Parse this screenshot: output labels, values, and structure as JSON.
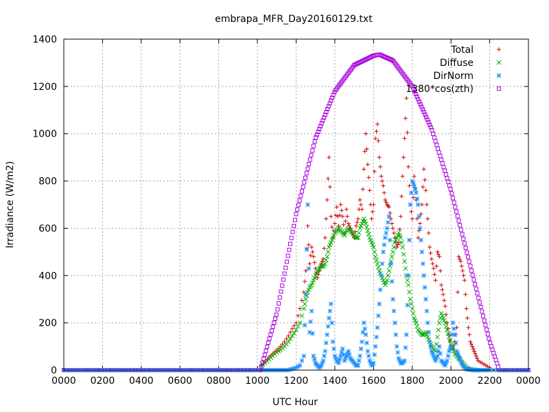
{
  "chart_data": {
    "type": "scatter",
    "title": "embrapa_MFR_Day20160129.txt",
    "xlabel": "UTC Hour",
    "ylabel": "Irradiance (W/m2)",
    "xlim": [
      0,
      24
    ],
    "ylim": [
      0,
      1400
    ],
    "x_ticks": [
      0,
      2,
      4,
      6,
      8,
      10,
      12,
      14,
      16,
      18,
      20,
      22,
      24
    ],
    "x_tick_labels": [
      "0000",
      "0200",
      "0400",
      "0600",
      "0800",
      "1000",
      "1200",
      "1400",
      "1600",
      "1800",
      "2000",
      "2200",
      "0000"
    ],
    "y_ticks": [
      0,
      200,
      400,
      600,
      800,
      1000,
      1200,
      1400
    ],
    "y_tick_labels": [
      "0",
      "200",
      "400",
      "600",
      "800",
      "1000",
      "1200",
      "1400"
    ],
    "grid": true,
    "legend_position": "top-right",
    "series": [
      {
        "name": "Total",
        "marker": "plus",
        "color": "#cc0000",
        "x": [
          10.2,
          10.4,
          10.6,
          10.8,
          11.0,
          11.2,
          11.4,
          11.6,
          11.8,
          12.0,
          12.2,
          12.4,
          12.5,
          12.6,
          12.7,
          12.8,
          12.9,
          13.0,
          13.1,
          13.2,
          13.3,
          13.4,
          13.5,
          13.6,
          13.7,
          13.8,
          13.9,
          14.0,
          14.1,
          14.2,
          14.3,
          14.4,
          14.5,
          14.6,
          14.7,
          14.8,
          14.9,
          15.0,
          15.1,
          15.2,
          15.3,
          15.4,
          15.5,
          15.6,
          15.7,
          15.8,
          15.9,
          16.0,
          16.1,
          16.2,
          16.3,
          16.4,
          16.5,
          16.6,
          16.7,
          16.8,
          16.9,
          17.0,
          17.1,
          17.2,
          17.3,
          17.4,
          17.5,
          17.6,
          17.7,
          17.8,
          17.9,
          18.0,
          18.1,
          18.2,
          18.3,
          18.4,
          18.5,
          18.6,
          18.7,
          18.8,
          18.9,
          19.0,
          19.1,
          19.2,
          19.3,
          19.4,
          19.5,
          19.6,
          19.7,
          19.8,
          19.9,
          20.0,
          20.1,
          20.2,
          20.3,
          20.4,
          20.5,
          20.6,
          20.7,
          20.8,
          20.9,
          21.0,
          21.1,
          21.2,
          21.3,
          21.4,
          21.6,
          21.8,
          22.0
        ],
        "y": [
          20,
          35,
          55,
          70,
          85,
          100,
          120,
          145,
          175,
          200,
          260,
          330,
          420,
          610,
          450,
          520,
          480,
          430,
          390,
          420,
          450,
          470,
          560,
          720,
          900,
          650,
          560,
          620,
          690,
          610,
          700,
          650,
          580,
          680,
          620,
          600,
          580,
          560,
          610,
          640,
          720,
          680,
          850,
          1000,
          870,
          760,
          640,
          700,
          980,
          1040,
          900,
          820,
          780,
          720,
          700,
          690,
          640,
          600,
          560,
          520,
          540,
          650,
          820,
          980,
          1150,
          860,
          700,
          640,
          820,
          720,
          560,
          620,
          700,
          850,
          760,
          640,
          520,
          470,
          430,
          380,
          500,
          480,
          360,
          320,
          270,
          200,
          150,
          100,
          90,
          120,
          180,
          480,
          460,
          420,
          380,
          260,
          180,
          120,
          100,
          80,
          60,
          40,
          30,
          20,
          10
        ]
      },
      {
        "name": "Diffuse",
        "marker": "cross",
        "color": "#00aa00",
        "x": [
          10.2,
          10.4,
          10.6,
          10.8,
          11.0,
          11.2,
          11.4,
          11.6,
          11.8,
          12.0,
          12.2,
          12.4,
          12.5,
          12.6,
          12.7,
          12.8,
          12.9,
          13.0,
          13.1,
          13.2,
          13.3,
          13.4,
          13.5,
          13.6,
          13.7,
          13.8,
          13.9,
          14.0,
          14.1,
          14.2,
          14.3,
          14.4,
          14.5,
          14.6,
          14.7,
          14.8,
          14.9,
          15.0,
          15.1,
          15.2,
          15.3,
          15.4,
          15.5,
          15.6,
          15.7,
          15.8,
          15.9,
          16.0,
          16.1,
          16.2,
          16.3,
          16.4,
          16.5,
          16.6,
          16.7,
          16.8,
          16.9,
          17.0,
          17.1,
          17.2,
          17.3,
          17.4,
          17.5,
          17.6,
          17.7,
          17.8,
          17.9,
          18.0,
          18.1,
          18.2,
          18.3,
          18.4,
          18.5,
          18.6,
          18.7,
          18.8,
          18.9,
          19.0,
          19.1,
          19.2,
          19.3,
          19.4,
          19.5,
          19.6,
          19.7,
          19.8,
          19.9,
          20.0,
          20.1,
          20.2,
          20.3,
          20.4,
          20.5,
          20.6,
          20.7,
          20.8,
          20.9,
          21.0,
          21.1,
          21.2,
          21.3,
          21.4,
          21.6,
          21.8,
          22.0
        ],
        "y": [
          15,
          30,
          45,
          60,
          75,
          85,
          100,
          120,
          145,
          170,
          200,
          260,
          300,
          330,
          350,
          360,
          380,
          400,
          420,
          430,
          440,
          440,
          450,
          480,
          520,
          540,
          560,
          580,
          590,
          600,
          590,
          580,
          570,
          590,
          600,
          590,
          580,
          570,
          560,
          560,
          600,
          620,
          640,
          620,
          590,
          560,
          540,
          520,
          480,
          450,
          420,
          400,
          380,
          360,
          380,
          420,
          460,
          500,
          540,
          560,
          580,
          560,
          520,
          460,
          400,
          360,
          300,
          260,
          220,
          200,
          170,
          160,
          150,
          150,
          160,
          140,
          120,
          100,
          90,
          80,
          140,
          200,
          240,
          220,
          200,
          170,
          140,
          110,
          90,
          70,
          60,
          50,
          40,
          30,
          20,
          10,
          5,
          3,
          2,
          1,
          0,
          0,
          0,
          0,
          0
        ]
      },
      {
        "name": "DirNorm",
        "marker": "star",
        "color": "#1e90ff",
        "x": [
          10.2,
          10.4,
          10.6,
          10.8,
          11.0,
          11.2,
          11.4,
          11.6,
          11.8,
          12.0,
          12.2,
          12.4,
          12.5,
          12.6,
          12.7,
          12.8,
          12.9,
          13.0,
          13.1,
          13.2,
          13.3,
          13.4,
          13.5,
          13.6,
          13.7,
          13.8,
          13.9,
          14.0,
          14.1,
          14.2,
          14.3,
          14.4,
          14.5,
          14.6,
          14.7,
          14.8,
          14.9,
          15.0,
          15.1,
          15.2,
          15.3,
          15.4,
          15.5,
          15.6,
          15.7,
          15.8,
          15.9,
          16.0,
          16.1,
          16.2,
          16.3,
          16.4,
          16.5,
          16.6,
          16.7,
          16.8,
          16.9,
          17.0,
          17.1,
          17.2,
          17.3,
          17.4,
          17.5,
          17.6,
          17.7,
          17.8,
          17.9,
          18.0,
          18.1,
          18.2,
          18.3,
          18.4,
          18.5,
          18.6,
          18.7,
          18.8,
          18.9,
          19.0,
          19.1,
          19.2,
          19.3,
          19.4,
          19.5,
          19.6,
          19.7,
          19.8,
          19.9,
          20.0,
          20.1,
          20.2,
          20.3,
          20.4,
          20.5,
          20.6,
          20.7,
          20.8,
          20.9,
          21.0,
          21.1,
          21.2,
          21.3,
          21.4,
          21.6,
          21.8,
          22.0
        ],
        "y": [
          0,
          0,
          0,
          0,
          0,
          0,
          0,
          0,
          5,
          10,
          20,
          60,
          320,
          700,
          160,
          250,
          60,
          30,
          20,
          10,
          20,
          40,
          80,
          150,
          220,
          280,
          120,
          60,
          40,
          30,
          60,
          90,
          40,
          60,
          80,
          50,
          40,
          30,
          20,
          20,
          60,
          120,
          200,
          150,
          80,
          40,
          20,
          30,
          100,
          180,
          280,
          400,
          500,
          560,
          600,
          650,
          450,
          300,
          200,
          100,
          50,
          30,
          30,
          40,
          150,
          400,
          700,
          800,
          780,
          750,
          700,
          600,
          500,
          400,
          300,
          200,
          120,
          80,
          60,
          40,
          60,
          100,
          40,
          30,
          20,
          40,
          80,
          100,
          200,
          150,
          80,
          60,
          40,
          20,
          10,
          5,
          3,
          2,
          1,
          0,
          0,
          0,
          0,
          0,
          0
        ]
      },
      {
        "name": "1380*cos(zth)",
        "marker": "square",
        "color": "#aa00dd",
        "x": [
          0,
          10.15,
          11.0,
          12.0,
          13.0,
          14.0,
          15.0,
          16.0,
          16.3,
          17.0,
          18.0,
          19.0,
          20.0,
          21.0,
          22.0,
          22.5,
          24
        ],
        "y": [
          0,
          0,
          240,
          660,
          980,
          1180,
          1290,
          1330,
          1335,
          1310,
          1200,
          1020,
          760,
          440,
          120,
          0,
          0
        ]
      }
    ]
  }
}
